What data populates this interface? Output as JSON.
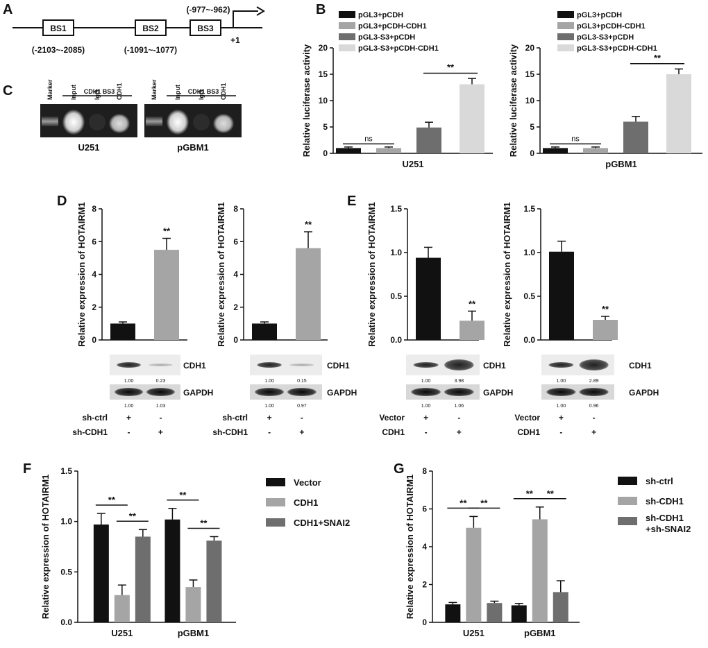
{
  "panels": {
    "A": "A",
    "B": "B",
    "C": "C",
    "D": "D",
    "E": "E",
    "F": "F",
    "G": "G"
  },
  "panel_a": {
    "boxes": [
      "BS1",
      "BS2",
      "BS3"
    ],
    "positions": [
      "(-2103~-2085)",
      "(-1091~-1077)",
      "(-977~-962)"
    ],
    "tss": "+1"
  },
  "panel_c": {
    "header": "CDH1 BS3",
    "lanes": [
      "Marker",
      "Input",
      "IgG",
      "CDH1"
    ],
    "cells": [
      "U251",
      "pGBM1"
    ]
  },
  "colors": {
    "black": "#111111",
    "light": "#a5a5a5",
    "dark": "#6e6e6e",
    "pale": "#d9d9d9"
  },
  "blots": {
    "protein": "CDH1",
    "control": "GAPDH",
    "d1": {
      "cdh1": [
        "1.00",
        "0.23"
      ],
      "gapdh": [
        "1.00",
        "1.03"
      ]
    },
    "d2": {
      "cdh1": [
        "1.00",
        "0.15"
      ],
      "gapdh": [
        "1.00",
        "0.97"
      ]
    },
    "e1": {
      "cdh1": [
        "1.00",
        "3.98"
      ],
      "gapdh": [
        "1.00",
        "1.06"
      ]
    },
    "e2": {
      "cdh1": [
        "1.00",
        "2.89"
      ],
      "gapdh": [
        "1.00",
        "0.96"
      ]
    },
    "d_rows": [
      {
        "label": "sh-ctrl",
        "signs": [
          "+",
          "-"
        ]
      },
      {
        "label": "sh-CDH1",
        "signs": [
          "-",
          "+"
        ]
      }
    ],
    "e_rows": [
      {
        "label": "Vector",
        "signs": [
          "+",
          "-"
        ]
      },
      {
        "label": "CDH1",
        "signs": [
          "-",
          "+"
        ]
      }
    ]
  },
  "chart_data": [
    {
      "id": "B1",
      "type": "bar",
      "title": "",
      "xlabel": "U251",
      "ylabel": "Relative luciferase activity",
      "ylim": [
        0,
        20
      ],
      "yticks": [
        0,
        5,
        10,
        15,
        20
      ],
      "legend": [
        "pGL3+pCDH",
        "pGL3+pCDH-CDH1",
        "pGL3-S3+pCDH",
        "pGL3-S3+pCDH-CDH1"
      ],
      "values": [
        1.0,
        1.0,
        4.9,
        13.1
      ],
      "errors": [
        0.2,
        0.2,
        1.0,
        1.1
      ],
      "annotations": [
        {
          "pair": [
            0,
            1
          ],
          "text": "ns",
          "level": 1.8
        },
        {
          "pair": [
            2,
            3
          ],
          "text": "**",
          "level": 15.2
        }
      ]
    },
    {
      "id": "B2",
      "type": "bar",
      "title": "",
      "xlabel": "pGBM1",
      "ylabel": "Relative luciferase activity",
      "ylim": [
        0,
        20
      ],
      "yticks": [
        0,
        5,
        10,
        15,
        20
      ],
      "legend": [
        "pGL3+pCDH",
        "pGL3+pCDH-CDH1",
        "pGL3-S3+pCDH",
        "pGL3-S3+pCDH-CDH1"
      ],
      "values": [
        1.0,
        1.0,
        6.0,
        15.0
      ],
      "errors": [
        0.2,
        0.2,
        1.0,
        1.0
      ],
      "annotations": [
        {
          "pair": [
            0,
            1
          ],
          "text": "ns",
          "level": 1.8
        },
        {
          "pair": [
            2,
            3
          ],
          "text": "**",
          "level": 17.0
        }
      ]
    },
    {
      "id": "D1",
      "type": "bar",
      "xlabel": "",
      "ylabel": "Relative expression of HOTAIRM1",
      "ylim": [
        0,
        8
      ],
      "yticks": [
        0,
        2,
        4,
        6,
        8
      ],
      "categories": [
        "sh-ctrl",
        "sh-CDH1"
      ],
      "values": [
        1.0,
        5.5
      ],
      "errors": [
        0.1,
        0.7
      ],
      "star": "**"
    },
    {
      "id": "D2",
      "type": "bar",
      "xlabel": "",
      "ylabel": "Relative expression of HOTAIRM1",
      "ylim": [
        0,
        8
      ],
      "yticks": [
        0,
        2,
        4,
        6,
        8
      ],
      "categories": [
        "sh-ctrl",
        "sh-CDH1"
      ],
      "values": [
        1.0,
        5.6
      ],
      "errors": [
        0.1,
        1.0
      ],
      "star": "**"
    },
    {
      "id": "E1",
      "type": "bar",
      "xlabel": "",
      "ylabel": "Relative expression of HOTAIRM1",
      "ylim": [
        0,
        1.5
      ],
      "yticks": [
        "0.0",
        "0.5",
        "1.0",
        "1.5"
      ],
      "categories": [
        "Vector",
        "CDH1"
      ],
      "values": [
        0.94,
        0.22
      ],
      "errors": [
        0.12,
        0.11
      ],
      "star": "**"
    },
    {
      "id": "E2",
      "type": "bar",
      "xlabel": "",
      "ylabel": "Relative expression of HOTAIRM1",
      "ylim": [
        0,
        1.5
      ],
      "yticks": [
        "0.0",
        "0.5",
        "1.0",
        "1.5"
      ],
      "categories": [
        "Vector",
        "CDH1"
      ],
      "values": [
        1.01,
        0.23
      ],
      "errors": [
        0.12,
        0.04
      ],
      "star": "**"
    },
    {
      "id": "F",
      "type": "bar",
      "ylabel": "Relative expression of HOTAIRM1",
      "ylim": [
        0,
        1.5
      ],
      "yticks": [
        "0.0",
        "0.5",
        "1.0",
        "1.5"
      ],
      "categories": [
        "U251",
        "pGBM1"
      ],
      "series": [
        {
          "name": "Vector",
          "values": [
            0.97,
            1.02
          ],
          "errors": [
            0.11,
            0.11
          ]
        },
        {
          "name": "CDH1",
          "values": [
            0.27,
            0.35
          ],
          "errors": [
            0.1,
            0.07
          ]
        },
        {
          "name": "CDH1+SNAI2",
          "values": [
            0.85,
            0.81
          ],
          "errors": [
            0.07,
            0.04
          ]
        }
      ],
      "star": "**"
    },
    {
      "id": "G",
      "type": "bar",
      "ylabel": "Relative expression of HOTAIRM1",
      "ylim": [
        0,
        8
      ],
      "yticks": [
        0,
        2,
        4,
        6,
        8
      ],
      "categories": [
        "U251",
        "pGBM1"
      ],
      "series": [
        {
          "name": "sh-ctrl",
          "values": [
            0.95,
            0.9
          ],
          "errors": [
            0.1,
            0.1
          ]
        },
        {
          "name": "sh-CDH1",
          "values": [
            5.0,
            5.45
          ],
          "errors": [
            0.6,
            0.65
          ]
        },
        {
          "name": "sh-CDH1\n+sh-SNAI2",
          "values": [
            1.02,
            1.6
          ],
          "errors": [
            0.1,
            0.6
          ]
        }
      ],
      "legend_lines": [
        "sh-ctrl",
        "sh-CDH1",
        "sh-CDH1",
        "+sh-SNAI2"
      ],
      "star": "**"
    }
  ]
}
